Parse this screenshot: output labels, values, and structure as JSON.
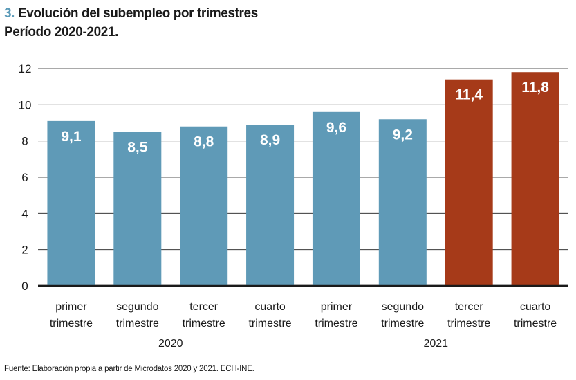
{
  "header": {
    "number": "3.",
    "title": "Evolución del subempleo por trimestres",
    "subtitle": "Período 2020-2021."
  },
  "source": "Fuente: Elaboración propia a partir de Microdatos 2020 y 2021. ECH-INE.",
  "colors": {
    "bar_2020": "#5f9ab7",
    "bar_2021_highlight": "#a63a19",
    "grid": "#1a1a1a"
  },
  "chart_data": {
    "type": "bar",
    "title": "Evolución del subempleo por trimestres",
    "subtitle": "Período 2020-2021.",
    "xlabel": "",
    "ylabel": "",
    "ylim": [
      0,
      12
    ],
    "yticks": [
      "0",
      "2",
      "4",
      "6",
      "8",
      "10",
      "12"
    ],
    "categories": [
      [
        "primer",
        "trimestre"
      ],
      [
        "segundo",
        "trimestre"
      ],
      [
        "tercer",
        "trimestre"
      ],
      [
        "cuarto",
        "trimestre"
      ],
      [
        "primer",
        "trimestre"
      ],
      [
        "segundo",
        "trimestre"
      ],
      [
        "tercer",
        "trimestre"
      ],
      [
        "cuarto",
        "trimestre"
      ]
    ],
    "values": [
      9.1,
      8.5,
      8.8,
      8.9,
      9.6,
      9.2,
      11.4,
      11.8
    ],
    "value_labels": [
      "9,1",
      "8,5",
      "8,8",
      "8,9",
      "9,6",
      "9,2",
      "11,4",
      "11,8"
    ],
    "bar_colors": [
      "#5f9ab7",
      "#5f9ab7",
      "#5f9ab7",
      "#5f9ab7",
      "#5f9ab7",
      "#5f9ab7",
      "#a63a19",
      "#a63a19"
    ],
    "groups": [
      {
        "label": "2020",
        "start": 0,
        "end": 3
      },
      {
        "label": "2021",
        "start": 4,
        "end": 7
      }
    ],
    "grid": true
  }
}
